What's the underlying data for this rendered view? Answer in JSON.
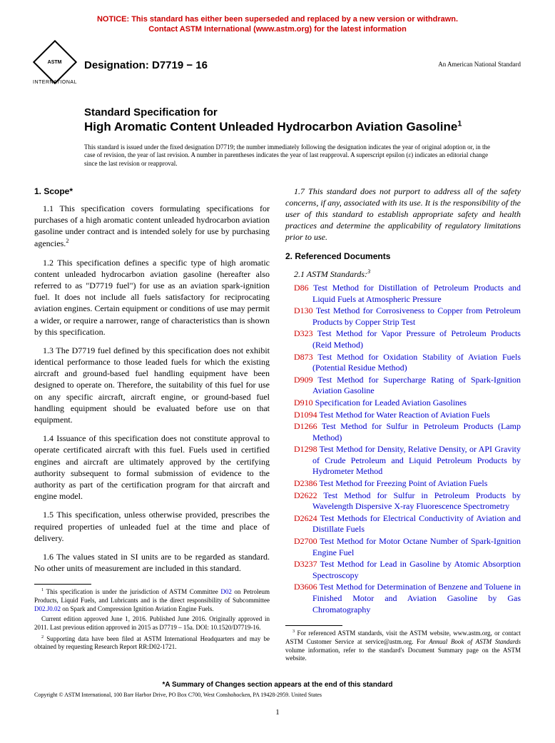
{
  "notice": {
    "line1": "NOTICE: This standard has either been superseded and replaced by a new version or withdrawn.",
    "line2": "Contact ASTM International (www.astm.org) for the latest information"
  },
  "logo": {
    "inner_text": "ASTM",
    "label": "INTERNATIONAL"
  },
  "designation": "Designation: D7719 − 16",
  "ans_label": "An American National Standard",
  "title": {
    "prefix": "Standard Specification for",
    "main": "High Aromatic Content Unleaded Hydrocarbon Aviation Gasoline",
    "footnote_marker": "1"
  },
  "issuance_note": "This standard is issued under the fixed designation D7719; the number immediately following the designation indicates the year of original adoption or, in the case of revision, the year of last revision. A number in parentheses indicates the year of last reapproval. A superscript epsilon (ε) indicates an editorial change since the last revision or reapproval.",
  "scope": {
    "heading": "1. Scope*",
    "p1": "1.1 This specification covers formulating specifications for purchases of a high aromatic content unleaded hydrocarbon aviation gasoline under contract and is intended solely for use by purchasing agencies.",
    "p1_sup": "2",
    "p2": "1.2 This specification defines a specific type of high aromatic content unleaded hydrocarbon aviation gasoline (hereafter also referred to as \"D7719 fuel\") for use as an aviation spark-ignition fuel. It does not include all fuels satisfactory for reciprocating aviation engines. Certain equipment or conditions of use may permit a wider, or require a narrower, range of characteristics than is shown by this specification.",
    "p3": "1.3 The D7719 fuel defined by this specification does not exhibit identical performance to those leaded fuels for which the existing aircraft and ground-based fuel handling equipment have been designed to operate on. Therefore, the suitability of this fuel for use on any specific aircraft, aircraft engine, or ground-based fuel handling equipment should be evaluated before use on that equipment.",
    "p4": "1.4 Issuance of this specification does not constitute approval to operate certificated aircraft with this fuel. Fuels used in certified engines and aircraft are ultimately approved by the certifying authority subsequent to formal submission of evidence to the authority as part of the certification program for that aircraft and engine model.",
    "p5": "1.5 This specification, unless otherwise provided, prescribes the required properties of unleaded fuel at the time and place of delivery.",
    "p6": "1.6 The values stated in SI units are to be regarded as standard. No other units of measurement are included in this standard.",
    "p7": "1.7 This standard does not purport to address all of the safety concerns, if any, associated with its use. It is the responsibility of the user of this standard to establish appropriate safety and health practices and determine the applicability of regulatory limitations prior to use."
  },
  "referenced": {
    "heading": "2. Referenced Documents",
    "sub": "2.1 ASTM Standards:",
    "sub_sup": "3",
    "items": [
      {
        "code": "D86",
        "title": "Test Method for Distillation of Petroleum Products and Liquid Fuels at Atmospheric Pressure"
      },
      {
        "code": "D130",
        "title": "Test Method for Corrosiveness to Copper from Petroleum Products by Copper Strip Test"
      },
      {
        "code": "D323",
        "title": "Test Method for Vapor Pressure of Petroleum Products (Reid Method)"
      },
      {
        "code": "D873",
        "title": "Test Method for Oxidation Stability of Aviation Fuels (Potential Residue Method)"
      },
      {
        "code": "D909",
        "title": "Test Method for Supercharge Rating of Spark-Ignition Aviation Gasoline"
      },
      {
        "code": "D910",
        "title": "Specification for Leaded Aviation Gasolines"
      },
      {
        "code": "D1094",
        "title": "Test Method for Water Reaction of Aviation Fuels"
      },
      {
        "code": "D1266",
        "title": "Test Method for Sulfur in Petroleum Products (Lamp Method)"
      },
      {
        "code": "D1298",
        "title": "Test Method for Density, Relative Density, or API Gravity of Crude Petroleum and Liquid Petroleum Products by Hydrometer Method"
      },
      {
        "code": "D2386",
        "title": "Test Method for Freezing Point of Aviation Fuels"
      },
      {
        "code": "D2622",
        "title": "Test Method for Sulfur in Petroleum Products by Wavelength Dispersive X-ray Fluorescence Spectrometry"
      },
      {
        "code": "D2624",
        "title": "Test Methods for Electrical Conductivity of Aviation and Distillate Fuels"
      },
      {
        "code": "D2700",
        "title": "Test Method for Motor Octane Number of Spark-Ignition Engine Fuel"
      },
      {
        "code": "D3237",
        "title": "Test Method for Lead in Gasoline by Atomic Absorption Spectroscopy"
      },
      {
        "code": "D3606",
        "title": "Test Method for Determination of Benzene and Toluene in Finished Motor and Aviation Gasoline by Gas Chromatography"
      }
    ]
  },
  "footnotes_left": {
    "f1_a": "This specification is under the jurisdiction of ASTM Committee ",
    "f1_link1": "D02",
    "f1_b": " on Petroleum Products, Liquid Fuels, and Lubricants and is the direct responsibility of Subcommittee ",
    "f1_link2": "D02.J0.02",
    "f1_c": " on Spark and Compression Ignition Aviation Engine Fuels.",
    "f1_para2": "Current edition approved June 1, 2016. Published June 2016. Originally approved in 2011. Last previous edition approved in 2015 as D7719 – 15a. DOI: 10.1520/D7719-16.",
    "f2": "Supporting data have been filed at ASTM International Headquarters and may be obtained by requesting Research Report RR:D02-1721."
  },
  "footnotes_right": {
    "f3_a": "For referenced ASTM standards, visit the ASTM website, www.astm.org, or contact ASTM Customer Service at service@astm.org. For ",
    "f3_i": "Annual Book of ASTM Standards",
    "f3_b": " volume information, refer to the standard's Document Summary page on the ASTM website."
  },
  "summary_line": "*A Summary of Changes section appears at the end of this standard",
  "copyright": "Copyright © ASTM International, 100 Barr Harbor Drive, PO Box C700, West Conshohocken, PA 19428-2959. United States",
  "page_number": "1"
}
